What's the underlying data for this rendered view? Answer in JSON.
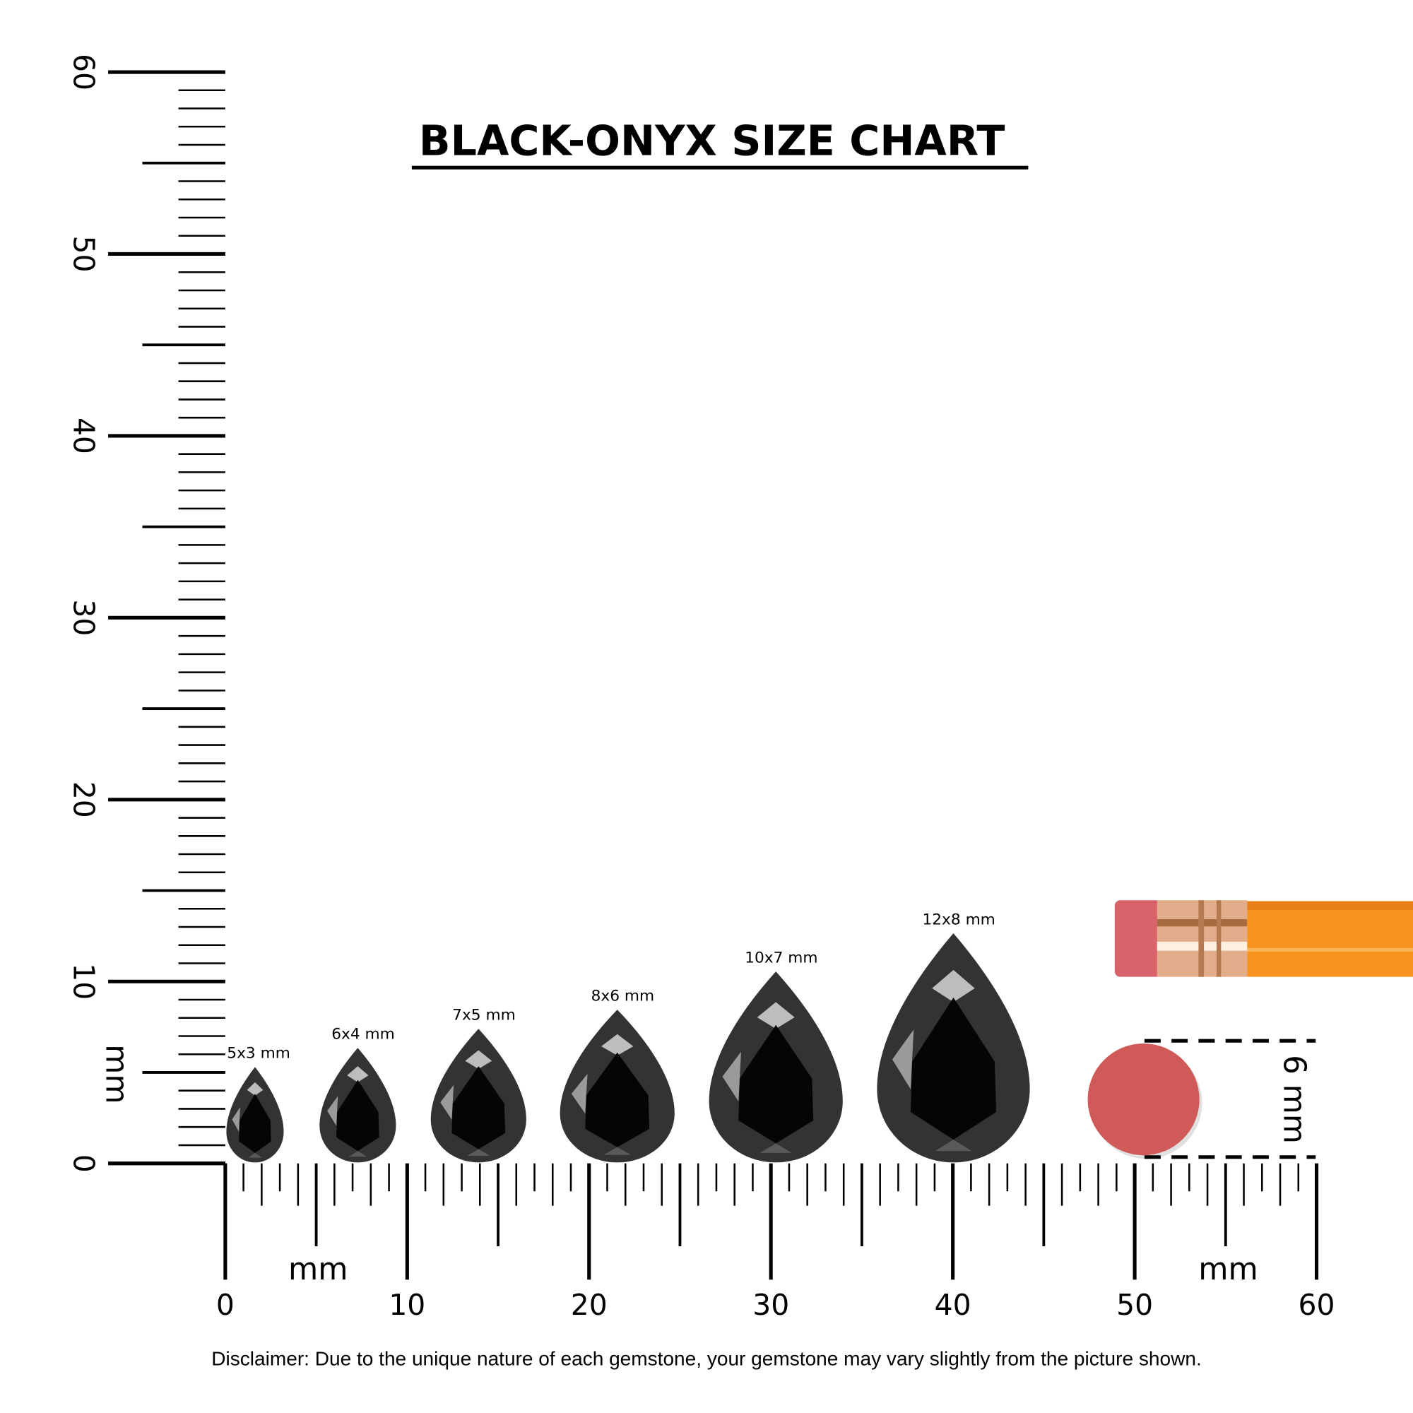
{
  "title": "BLACK-ONYX SIZE CHART",
  "unit_label": "mm",
  "ruler": {
    "range_mm": [
      0,
      60
    ],
    "major_labels": [
      "0",
      "10",
      "20",
      "30",
      "40",
      "50",
      "60"
    ]
  },
  "gemstones": [
    {
      "label": "5x3 mm",
      "length_mm": 5,
      "width_mm": 3
    },
    {
      "label": "6x4 mm",
      "length_mm": 6,
      "width_mm": 4
    },
    {
      "label": "7x5 mm",
      "length_mm": 7,
      "width_mm": 5
    },
    {
      "label": "8x6 mm",
      "length_mm": 8,
      "width_mm": 6
    },
    {
      "label": "10x7 mm",
      "length_mm": 10,
      "width_mm": 7
    },
    {
      "label": "12x8 mm",
      "length_mm": 12,
      "width_mm": 8
    }
  ],
  "reference": {
    "label": "6 mm",
    "object": "pencil eraser",
    "diameter_mm": 6
  },
  "colors": {
    "gem_outer": "#333333",
    "gem_table": "#050505",
    "eraser": "#d05a5a",
    "pencil": "#f7941d",
    "ferrule": "#d9a07a"
  },
  "disclaimer": "Disclaimer: Due to the unique nature of each gemstone, your gemstone may vary slightly from the picture shown."
}
